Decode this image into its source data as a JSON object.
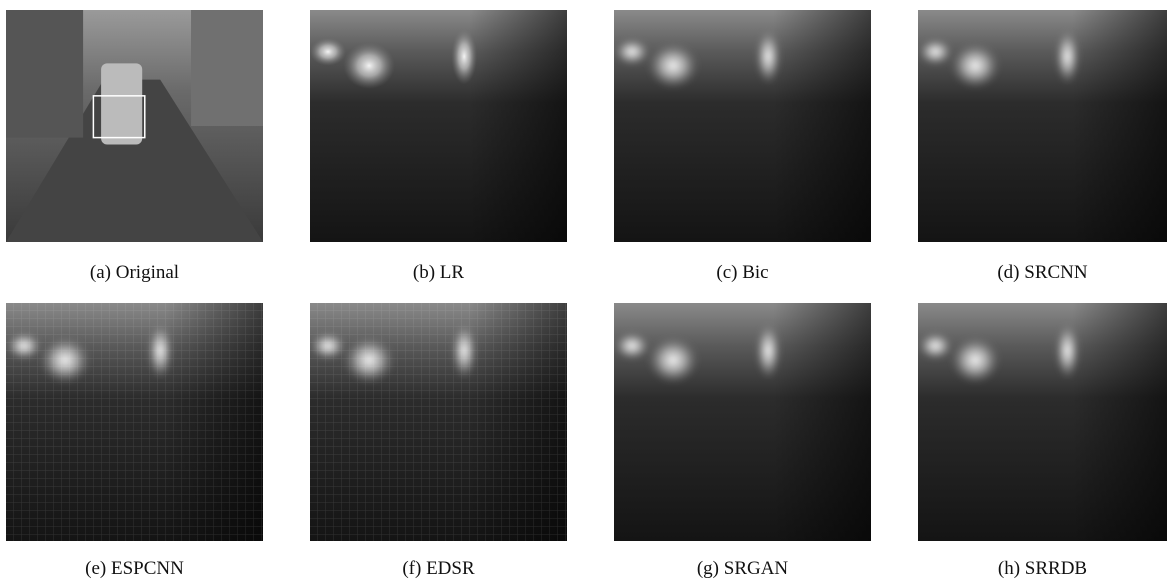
{
  "figure": {
    "panels": [
      {
        "caption": "(a) Original"
      },
      {
        "caption": "(b) LR"
      },
      {
        "caption": "(c) Bic"
      },
      {
        "caption": "(d) SRCNN"
      },
      {
        "caption": "(e) ESPCNN"
      },
      {
        "caption": "(f) EDSR"
      },
      {
        "caption": "(g) SRGAN"
      },
      {
        "caption": "(h) SRRDB"
      }
    ]
  }
}
